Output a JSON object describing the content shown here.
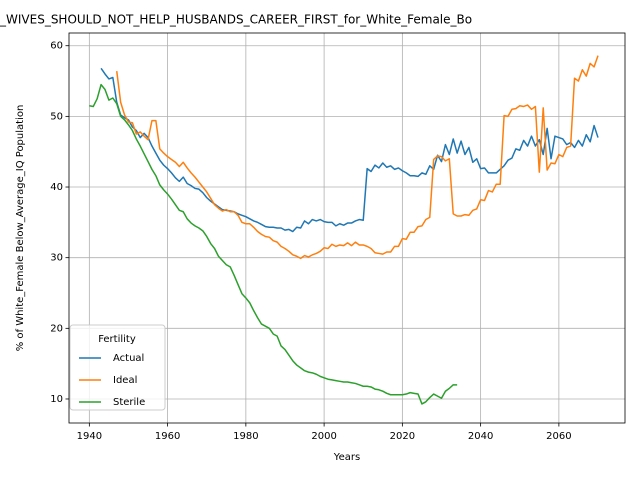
{
  "chart_data": {
    "type": "line",
    "title": "_WIVES_SHOULD_NOT_HELP_HUSBANDS_CAREER_FIRST_for_White_Female_Bo",
    "xlabel": "Years",
    "ylabel": "% of White_Female Below_Average_IQ Population",
    "legend_title": "Fertility",
    "legend_loc": "lower left",
    "grid": true,
    "xlim": [
      1934.8,
      2076.9
    ],
    "ylim": [
      6.6,
      61.8
    ],
    "xticks": [
      1940,
      1960,
      1980,
      2000,
      2020,
      2040,
      2060
    ],
    "yticks": [
      10,
      20,
      30,
      40,
      50,
      60
    ],
    "x": [
      1940,
      1941,
      1942,
      1943,
      1944,
      1945,
      1946,
      1947,
      1948,
      1949,
      1950,
      1951,
      1952,
      1953,
      1954,
      1955,
      1956,
      1957,
      1958,
      1959,
      1960,
      1961,
      1962,
      1963,
      1964,
      1965,
      1966,
      1967,
      1968,
      1969,
      1970,
      1971,
      1972,
      1973,
      1974,
      1975,
      1976,
      1977,
      1978,
      1979,
      1980,
      1981,
      1982,
      1983,
      1984,
      1985,
      1986,
      1987,
      1988,
      1989,
      1990,
      1991,
      1992,
      1993,
      1994,
      1995,
      1996,
      1997,
      1998,
      1999,
      2000,
      2001,
      2002,
      2003,
      2004,
      2005,
      2006,
      2007,
      2008,
      2009,
      2010,
      2011,
      2012,
      2013,
      2014,
      2015,
      2016,
      2017,
      2018,
      2019,
      2020,
      2021,
      2022,
      2023,
      2024,
      2025,
      2026,
      2027,
      2028,
      2029,
      2030,
      2031,
      2032,
      2033,
      2034,
      2035,
      2036,
      2037,
      2038,
      2039,
      2040,
      2041,
      2042,
      2043,
      2044,
      2045,
      2046,
      2047,
      2048,
      2049,
      2050,
      2051,
      2052,
      2053,
      2054,
      2055,
      2056,
      2057,
      2058,
      2059,
      2060,
      2061,
      2062,
      2063,
      2064,
      2065,
      2066,
      2067,
      2068,
      2069,
      2070
    ],
    "series": [
      {
        "name": "Actual",
        "color": "#1f77b4",
        "values": [
          null,
          null,
          null,
          56.8,
          56.0,
          55.3,
          55.5,
          52.0,
          50.2,
          49.8,
          49.5,
          48.5,
          48.0,
          47.0,
          47.6,
          47.0,
          45.8,
          44.8,
          43.8,
          43.1,
          42.6,
          42.0,
          41.3,
          40.8,
          41.4,
          40.5,
          40.2,
          39.8,
          39.7,
          39.2,
          38.5,
          38.0,
          37.6,
          37.2,
          36.8,
          36.7,
          36.6,
          36.5,
          36.2,
          36.0,
          35.8,
          35.5,
          35.2,
          35.0,
          34.7,
          34.4,
          34.3,
          34.3,
          34.2,
          34.2,
          33.9,
          34.0,
          33.7,
          34.3,
          34.2,
          35.2,
          34.8,
          35.4,
          35.2,
          35.4,
          35.1,
          35.0,
          35.0,
          34.5,
          34.8,
          34.6,
          34.9,
          34.9,
          35.2,
          35.4,
          35.3,
          42.6,
          42.2,
          43.1,
          42.7,
          43.4,
          42.8,
          43.0,
          42.5,
          42.7,
          42.3,
          42.0,
          41.6,
          41.6,
          41.5,
          42.0,
          41.8,
          43.0,
          42.5,
          44.5,
          43.6,
          46.0,
          44.6,
          46.8,
          44.8,
          46.5,
          44.6,
          45.6,
          43.5,
          44.0,
          42.6,
          42.7,
          42.0,
          42.0,
          42.0,
          42.5,
          43.0,
          43.8,
          44.1,
          45.4,
          45.2,
          46.6,
          45.8,
          47.2,
          45.8,
          46.7,
          44.6,
          48.3,
          44.0,
          47.2,
          47.0,
          46.8,
          46.0,
          46.3,
          45.6,
          46.6,
          45.8,
          47.4,
          46.4,
          48.7,
          47.0
        ]
      },
      {
        "name": "Ideal",
        "color": "#ff7f0e",
        "values": [
          null,
          null,
          null,
          null,
          null,
          null,
          null,
          56.4,
          52.0,
          50.2,
          49.2,
          49.1,
          47.5,
          47.8,
          47.2,
          46.7,
          49.4,
          49.4,
          45.4,
          44.8,
          44.3,
          43.9,
          43.5,
          42.9,
          43.5,
          42.7,
          42.0,
          41.4,
          40.7,
          40.0,
          39.3,
          38.4,
          37.5,
          37.0,
          36.6,
          36.8,
          36.5,
          36.5,
          36.0,
          35.0,
          34.8,
          34.8,
          34.3,
          33.7,
          33.3,
          33.0,
          32.9,
          32.4,
          32.2,
          31.6,
          31.3,
          30.9,
          30.4,
          30.2,
          29.9,
          30.3,
          30.1,
          30.4,
          30.6,
          30.9,
          31.4,
          31.3,
          31.9,
          31.6,
          31.8,
          31.7,
          32.1,
          31.7,
          32.2,
          31.8,
          31.8,
          31.6,
          31.3,
          30.7,
          30.6,
          30.5,
          30.8,
          30.8,
          31.6,
          31.6,
          32.7,
          32.6,
          33.6,
          33.6,
          34.4,
          34.5,
          35.4,
          35.7,
          43.9,
          44.4,
          44.3,
          43.7,
          44.0,
          36.2,
          35.9,
          35.9,
          36.1,
          36.0,
          36.7,
          36.9,
          38.2,
          38.1,
          39.5,
          39.3,
          40.4,
          40.4,
          50.1,
          50.0,
          51.0,
          51.1,
          51.5,
          51.4,
          51.6,
          51.0,
          51.4,
          42.1,
          51.2,
          42.4,
          43.4,
          43.3,
          44.6,
          44.3,
          45.6,
          45.8,
          55.4,
          55.0,
          56.6,
          55.7,
          57.5,
          57.0,
          58.6
        ]
      },
      {
        "name": "Sterile",
        "color": "#2ca02c",
        "values": [
          51.5,
          51.4,
          52.5,
          54.5,
          53.8,
          52.3,
          52.6,
          51.8,
          50.0,
          49.5,
          48.8,
          48.0,
          46.8,
          45.8,
          44.7,
          43.6,
          42.5,
          41.6,
          40.3,
          39.6,
          39.0,
          38.3,
          37.5,
          36.7,
          36.5,
          35.5,
          34.9,
          34.5,
          34.2,
          33.8,
          33.0,
          32.0,
          31.3,
          30.2,
          29.6,
          29.0,
          28.7,
          27.5,
          26.2,
          24.9,
          24.3,
          23.6,
          22.5,
          21.5,
          20.6,
          20.3,
          20.0,
          19.2,
          18.9,
          17.5,
          17.0,
          16.2,
          15.4,
          14.8,
          14.4,
          14.0,
          13.8,
          13.7,
          13.5,
          13.2,
          13.0,
          12.8,
          12.7,
          12.6,
          12.5,
          12.4,
          12.4,
          12.3,
          12.2,
          12.0,
          11.8,
          11.8,
          11.7,
          11.4,
          11.3,
          11.1,
          10.8,
          10.6,
          10.6,
          10.6,
          10.6,
          10.7,
          10.9,
          10.8,
          10.7,
          9.3,
          9.6,
          10.2,
          10.7,
          10.4,
          10.1,
          11.1,
          11.5,
          12.0,
          12.0,
          null,
          null,
          null,
          null,
          null,
          null,
          null,
          null,
          null,
          null,
          null,
          null,
          null,
          null,
          null,
          null,
          null,
          null,
          null,
          null,
          null,
          null,
          null,
          null,
          null,
          null,
          null,
          null,
          null,
          null,
          null,
          null,
          null,
          null,
          null,
          null
        ]
      }
    ]
  }
}
